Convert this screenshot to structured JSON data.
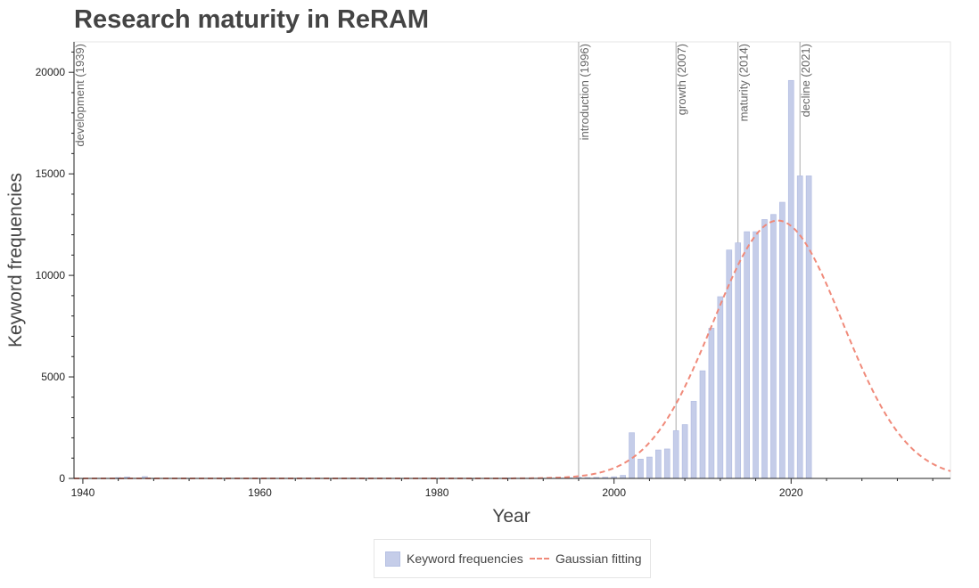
{
  "chart_data": {
    "type": "bar",
    "title": "Research maturity in ReRAM",
    "xlabel": "Year",
    "ylabel": "Keyword frequencies",
    "xlim": [
      1939,
      2038
    ],
    "ylim": [
      0,
      21500
    ],
    "x_ticks": [
      1940,
      1960,
      1980,
      2000,
      2020
    ],
    "y_ticks": [
      0,
      5000,
      10000,
      15000,
      20000
    ],
    "series": [
      {
        "name": "Keyword frequencies",
        "kind": "bar",
        "color": "#c5cde9",
        "x": [
          1940,
          1941,
          1942,
          1943,
          1944,
          1945,
          1946,
          1947,
          1948,
          1949,
          1950,
          1951,
          1952,
          1953,
          1954,
          1955,
          1956,
          1957,
          1958,
          1959,
          1960,
          1961,
          1962,
          1963,
          1964,
          1965,
          1966,
          1967,
          1968,
          1969,
          1970,
          1971,
          1972,
          1973,
          1974,
          1975,
          1976,
          1977,
          1978,
          1979,
          1980,
          1981,
          1982,
          1983,
          1984,
          1985,
          1986,
          1987,
          1988,
          1989,
          1990,
          1991,
          1992,
          1993,
          1994,
          1995,
          1996,
          1997,
          1998,
          1999,
          2000,
          2001,
          2002,
          2003,
          2004,
          2005,
          2006,
          2007,
          2008,
          2009,
          2010,
          2011,
          2012,
          2013,
          2014,
          2015,
          2016,
          2017,
          2018,
          2019,
          2020,
          2021,
          2022
        ],
        "values": [
          5,
          5,
          10,
          5,
          40,
          70,
          10,
          90,
          10,
          5,
          5,
          5,
          5,
          5,
          5,
          5,
          5,
          5,
          5,
          5,
          5,
          5,
          5,
          5,
          5,
          5,
          5,
          5,
          5,
          5,
          5,
          5,
          5,
          5,
          5,
          5,
          5,
          5,
          5,
          5,
          5,
          5,
          5,
          5,
          5,
          5,
          5,
          5,
          20,
          10,
          10,
          10,
          10,
          10,
          20,
          30,
          60,
          40,
          50,
          60,
          80,
          150,
          2250,
          950,
          1050,
          1400,
          1450,
          2350,
          2650,
          3800,
          5300,
          7400,
          8950,
          11250,
          11600,
          12150,
          12150,
          12750,
          13000,
          13600,
          19600,
          14900,
          14900
        ]
      },
      {
        "name": "Gaussian fitting",
        "kind": "line",
        "style": "dashed",
        "color": "#f08a7a",
        "fit": {
          "amplitude": 12700,
          "mean": 2018.5,
          "sigma": 7.3
        }
      }
    ],
    "annotations": [
      {
        "year": 1939,
        "label": "development (1939)"
      },
      {
        "year": 1996,
        "label": "introduction (1996)"
      },
      {
        "year": 2007,
        "label": "growth (2007)"
      },
      {
        "year": 2014,
        "label": "maturity (2014)"
      },
      {
        "year": 2021,
        "label": "decline (2021)"
      }
    ],
    "legend_position": "bottom-center",
    "grid": false
  }
}
